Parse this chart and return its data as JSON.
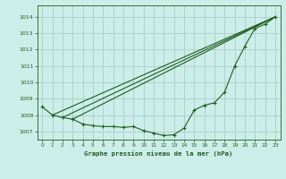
{
  "bg_color": "#cceee8",
  "grid_color": "#aacccc",
  "line_color": "#1e5c1e",
  "title": "Graphe pression niveau de la mer (hPa)",
  "xlim": [
    -0.5,
    23.5
  ],
  "ylim": [
    1006.5,
    1014.7
  ],
  "yticks": [
    1007,
    1008,
    1009,
    1010,
    1011,
    1012,
    1013,
    1014
  ],
  "xticks": [
    0,
    1,
    2,
    3,
    4,
    5,
    6,
    7,
    8,
    9,
    10,
    11,
    12,
    13,
    14,
    15,
    16,
    17,
    18,
    19,
    20,
    21,
    22,
    23
  ],
  "line_main": {
    "x": [
      0,
      1,
      2,
      3,
      4,
      5,
      6,
      7,
      8,
      9,
      10,
      11,
      12,
      13,
      14,
      15,
      16,
      17,
      18,
      19,
      20,
      21,
      22,
      23
    ],
    "y": [
      1008.5,
      1008.0,
      1007.85,
      1007.75,
      1007.45,
      1007.35,
      1007.3,
      1007.3,
      1007.25,
      1007.3,
      1007.05,
      1006.9,
      1006.75,
      1006.8,
      1007.2,
      1008.3,
      1008.6,
      1008.75,
      1009.4,
      1011.0,
      1012.2,
      1013.3,
      1013.55,
      1014.0
    ]
  },
  "line_straight1": {
    "x": [
      1,
      23
    ],
    "y": [
      1008.0,
      1014.0
    ]
  },
  "line_straight2": {
    "x": [
      2,
      23
    ],
    "y": [
      1007.85,
      1014.0
    ]
  },
  "line_straight3": {
    "x": [
      3,
      23
    ],
    "y": [
      1007.75,
      1014.0
    ]
  }
}
